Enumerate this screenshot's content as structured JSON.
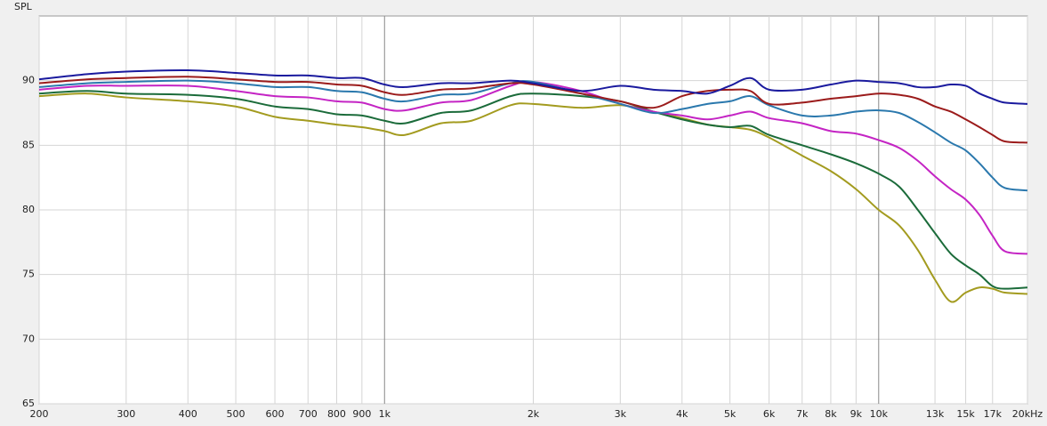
{
  "chart_data": {
    "type": "line",
    "y_label": "SPL",
    "x_scale": "log",
    "grid": true,
    "x": [
      200,
      250,
      300,
      400,
      500,
      600,
      700,
      800,
      900,
      1000,
      1100,
      1300,
      1500,
      1800,
      2000,
      2500,
      3000,
      3500,
      4000,
      4500,
      5000,
      5500,
      6000,
      7000,
      8000,
      9000,
      10000,
      11000,
      12000,
      13000,
      14000,
      15000,
      16000,
      17000,
      18000,
      20000
    ],
    "series": [
      {
        "color": "#a39b1f",
        "values": [
          88.8,
          89.0,
          88.7,
          88.4,
          88.0,
          87.2,
          86.9,
          86.6,
          86.4,
          86.1,
          85.8,
          86.7,
          86.9,
          88.1,
          88.2,
          87.9,
          88.1,
          87.6,
          87.1,
          86.6,
          86.4,
          86.2,
          85.6,
          84.2,
          83.0,
          81.6,
          80.0,
          78.8,
          76.9,
          74.6,
          72.9,
          73.6,
          74.0,
          73.9,
          73.6,
          73.5
        ]
      },
      {
        "color": "#1b6b3a",
        "values": [
          89.0,
          89.2,
          89.0,
          88.9,
          88.6,
          88.0,
          87.8,
          87.4,
          87.3,
          86.9,
          86.7,
          87.5,
          87.7,
          88.8,
          89.0,
          88.8,
          88.4,
          87.6,
          87.0,
          86.6,
          86.4,
          86.5,
          85.8,
          85.0,
          84.3,
          83.6,
          82.8,
          81.8,
          80.0,
          78.2,
          76.6,
          75.7,
          75.0,
          74.1,
          73.9,
          74.0
        ]
      },
      {
        "color": "#c424c4",
        "values": [
          89.3,
          89.6,
          89.6,
          89.6,
          89.2,
          88.8,
          88.7,
          88.4,
          88.3,
          87.8,
          87.7,
          88.3,
          88.5,
          89.6,
          89.9,
          89.2,
          88.2,
          87.6,
          87.3,
          87.0,
          87.3,
          87.6,
          87.1,
          86.7,
          86.1,
          85.9,
          85.4,
          84.8,
          83.8,
          82.6,
          81.6,
          80.8,
          79.6,
          78.0,
          76.8,
          76.6
        ]
      },
      {
        "color": "#2a78ad",
        "values": [
          89.5,
          89.8,
          89.9,
          90.0,
          89.8,
          89.5,
          89.5,
          89.2,
          89.1,
          88.6,
          88.4,
          88.9,
          89.0,
          89.8,
          89.9,
          89.0,
          88.2,
          87.5,
          87.8,
          88.2,
          88.4,
          88.8,
          88.1,
          87.3,
          87.3,
          87.6,
          87.7,
          87.5,
          86.8,
          86.0,
          85.2,
          84.6,
          83.6,
          82.5,
          81.7,
          81.5
        ]
      },
      {
        "color": "#9b1b1b",
        "values": [
          89.8,
          90.1,
          90.2,
          90.3,
          90.1,
          89.9,
          89.9,
          89.7,
          89.6,
          89.1,
          88.9,
          89.3,
          89.4,
          89.8,
          89.7,
          89.0,
          88.4,
          87.9,
          88.8,
          89.2,
          89.3,
          89.2,
          88.2,
          88.3,
          88.6,
          88.8,
          89.0,
          88.9,
          88.6,
          88.0,
          87.6,
          87.0,
          86.4,
          85.8,
          85.3,
          85.2
        ]
      },
      {
        "color": "#1a1a9e",
        "values": [
          90.1,
          90.5,
          90.7,
          90.8,
          90.6,
          90.4,
          90.4,
          90.2,
          90.2,
          89.7,
          89.5,
          89.8,
          89.8,
          90.0,
          89.8,
          89.2,
          89.6,
          89.3,
          89.2,
          89.0,
          89.6,
          90.2,
          89.3,
          89.3,
          89.7,
          90.0,
          89.9,
          89.8,
          89.5,
          89.5,
          89.7,
          89.6,
          89.0,
          88.6,
          88.3,
          88.2
        ]
      }
    ],
    "xlim": [
      200,
      20000
    ],
    "xticks": [
      200,
      300,
      400,
      500,
      600,
      700,
      800,
      900,
      {
        "value": 1000,
        "label": "1k"
      },
      {
        "value": 2000,
        "label": "2k"
      },
      {
        "value": 3000,
        "label": "3k"
      },
      {
        "value": 4000,
        "label": "4k"
      },
      {
        "value": 5000,
        "label": "5k"
      },
      {
        "value": 6000,
        "label": "6k"
      },
      {
        "value": 7000,
        "label": "7k"
      },
      {
        "value": 8000,
        "label": "8k"
      },
      {
        "value": 9000,
        "label": "9k"
      },
      {
        "value": 10000,
        "label": "10k"
      },
      {
        "value": 13000,
        "label": "13k"
      },
      {
        "value": 15000,
        "label": "15k"
      },
      {
        "value": 17000,
        "label": "17k"
      },
      {
        "value": 20000,
        "label": "20kHz"
      }
    ],
    "ylim": [
      65,
      95
    ],
    "yticks": [
      65,
      70,
      75,
      80,
      85,
      90
    ]
  }
}
